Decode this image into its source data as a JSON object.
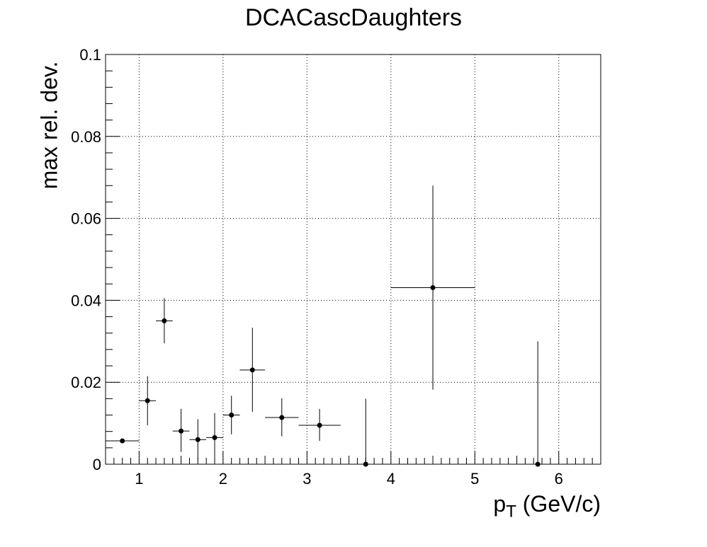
{
  "chart_data": {
    "type": "scatter",
    "title": "DCACascDaughters",
    "xlabel": "p",
    "xlabel_sub": "T",
    "xlabel_suffix": " (GeV/c)",
    "ylabel": "max rel. dev.",
    "xlim": [
      0.6,
      6.5
    ],
    "ylim": [
      0,
      0.1
    ],
    "grid": true,
    "x_ticks": [
      "1",
      "2",
      "3",
      "4",
      "5",
      "6"
    ],
    "y_ticks": [
      "0",
      "0.02",
      "0.04",
      "0.06",
      "0.08",
      "0.1"
    ],
    "points": [
      {
        "x": 0.8,
        "xlo": 0.6,
        "xhi": 1.0,
        "y": 0.0057,
        "ylo": 0.0052,
        "yhi": 0.0062
      },
      {
        "x": 1.1,
        "xlo": 1.0,
        "xhi": 1.2,
        "y": 0.0155,
        "ylo": 0.0095,
        "yhi": 0.0215
      },
      {
        "x": 1.3,
        "xlo": 1.2,
        "xhi": 1.4,
        "y": 0.035,
        "ylo": 0.0295,
        "yhi": 0.0405
      },
      {
        "x": 1.5,
        "xlo": 1.4,
        "xhi": 1.6,
        "y": 0.0081,
        "ylo": 0.003,
        "yhi": 0.0135
      },
      {
        "x": 1.7,
        "xlo": 1.6,
        "xhi": 1.8,
        "y": 0.006,
        "ylo": 0.0012,
        "yhi": 0.011
      },
      {
        "x": 1.9,
        "xlo": 1.8,
        "xhi": 2.0,
        "y": 0.0065,
        "ylo": 0.0007,
        "yhi": 0.0125
      },
      {
        "x": 2.1,
        "xlo": 2.0,
        "xhi": 2.2,
        "y": 0.012,
        "ylo": 0.0073,
        "yhi": 0.0167
      },
      {
        "x": 2.35,
        "xlo": 2.2,
        "xhi": 2.5,
        "y": 0.023,
        "ylo": 0.0128,
        "yhi": 0.0333
      },
      {
        "x": 2.7,
        "xlo": 2.5,
        "xhi": 2.9,
        "y": 0.0114,
        "ylo": 0.0068,
        "yhi": 0.0161
      },
      {
        "x": 3.15,
        "xlo": 2.9,
        "xhi": 3.4,
        "y": 0.0095,
        "ylo": 0.0057,
        "yhi": 0.0135
      },
      {
        "x": 3.7,
        "xlo": 3.4,
        "xhi": 4.0,
        "y": 0.0,
        "ylo": 0.0,
        "yhi": 0.016
      },
      {
        "x": 4.5,
        "xlo": 4.0,
        "xhi": 5.0,
        "y": 0.0431,
        "ylo": 0.0182,
        "yhi": 0.068
      },
      {
        "x": 5.75,
        "xlo": 5.0,
        "xhi": 6.5,
        "y": 0.0,
        "ylo": 0.0,
        "yhi": 0.03
      }
    ]
  }
}
